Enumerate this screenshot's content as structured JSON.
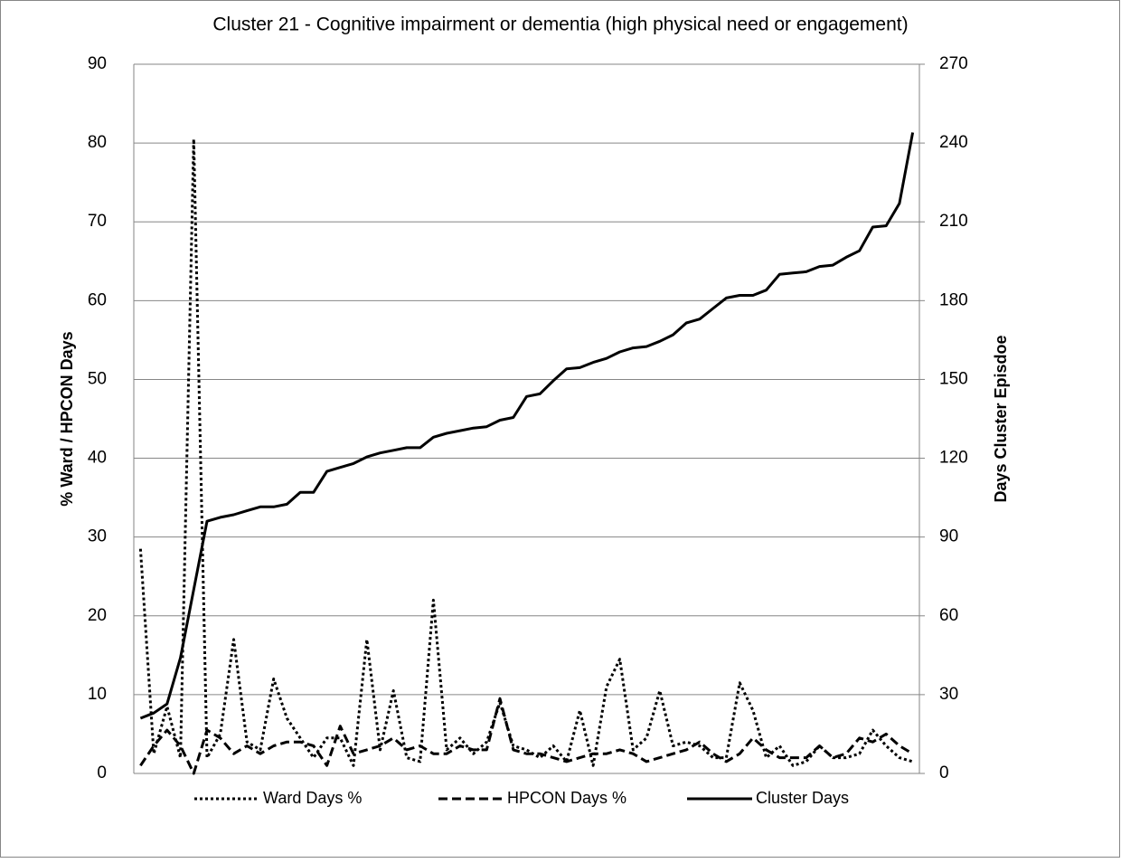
{
  "chart_data": {
    "type": "line",
    "title": "Cluster 21 - Cognitive impairment or dementia (high physical need or engagement)",
    "ylabel": "% Ward / HPCON Days",
    "y2label": "Days Cluster Episdoe",
    "categories": [
      null,
      null,
      null,
      null,
      null,
      null,
      null,
      null,
      null,
      null,
      null,
      null,
      null,
      null,
      null,
      null,
      null,
      null,
      null,
      null,
      null,
      null,
      null,
      null,
      null,
      null,
      null,
      null,
      null,
      null,
      null,
      null,
      null,
      null,
      null,
      null,
      null,
      null,
      null,
      null,
      null,
      null,
      null,
      null,
      null,
      null,
      null,
      null,
      null,
      null,
      null,
      null,
      null,
      null,
      null,
      null,
      null,
      null,
      null
    ],
    "ylim": [
      0,
      90
    ],
    "yticks": [
      0,
      10,
      20,
      30,
      40,
      50,
      60,
      70,
      80,
      90
    ],
    "y2lim": [
      0,
      270
    ],
    "y2ticks": [
      0,
      30,
      60,
      90,
      120,
      150,
      180,
      210,
      240,
      270
    ],
    "grid": true,
    "legend": "bottom",
    "series": [
      {
        "name": "Ward Days %",
        "color": "#000000",
        "dash": "dotted",
        "values": [
          28.5,
          2.5,
          8.5,
          2,
          80.5,
          2,
          5,
          17,
          4,
          3,
          12,
          7,
          4.5,
          2,
          4.5,
          4.5,
          1,
          17,
          3,
          10.5,
          2,
          1.5,
          22,
          3,
          4.5,
          2.5,
          4,
          9,
          3.5,
          3,
          2,
          3.5,
          1.5,
          8,
          1,
          11,
          14.5,
          3,
          4.5,
          10.5,
          3.5,
          4,
          3.5,
          2,
          2,
          11.5,
          8,
          2,
          3.5,
          1,
          1.5,
          3.5,
          2,
          2,
          2.5,
          5.5,
          3.5,
          2,
          1.5
        ]
      },
      {
        "name": "HPCON Days %",
        "color": "#000000",
        "dash": "dashed",
        "values": [
          1,
          3.5,
          5.5,
          3.5,
          0,
          5.5,
          4.5,
          2.5,
          3.5,
          2.5,
          3.5,
          4,
          4,
          3.5,
          1,
          6,
          2.5,
          3,
          3.5,
          4.5,
          3,
          3.5,
          2.5,
          2.5,
          3.5,
          3,
          3,
          9.5,
          3,
          2.5,
          2.5,
          2,
          1.5,
          2,
          2.5,
          2.5,
          3,
          2.5,
          1.5,
          2,
          2.5,
          3,
          4,
          2.5,
          1.5,
          2.5,
          4.5,
          3,
          2,
          2,
          2,
          3.5,
          2,
          2.5,
          4.5,
          4,
          5,
          3.5,
          2.5
        ]
      },
      {
        "name": "Cluster Days",
        "color": "#000000",
        "dash": "solid",
        "axis": "y2",
        "values": [
          21,
          23,
          26.5,
          44,
          70,
          96,
          97.5,
          98.5,
          100,
          101.5,
          101.5,
          102.5,
          107,
          107,
          115,
          116.5,
          118,
          120.5,
          122,
          123,
          124,
          124,
          128,
          129.5,
          130.5,
          131.5,
          132,
          134.5,
          135.5,
          143.5,
          144.5,
          149.5,
          154,
          154.5,
          156.5,
          158,
          160.5,
          162,
          162.5,
          164.5,
          167,
          171.5,
          173,
          177,
          181,
          182,
          182,
          184,
          190,
          190.5,
          191,
          193,
          193.5,
          196.5,
          199,
          208,
          208.5,
          217,
          244
        ]
      }
    ]
  }
}
